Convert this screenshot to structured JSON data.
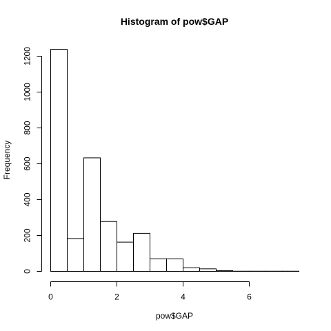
{
  "chart_data": {
    "type": "bar",
    "title": "Histogram of pow$GAP",
    "xlabel": "pow$GAP",
    "ylabel": "Frequency",
    "bin_width": 0.5,
    "bins": [
      {
        "start": 0.0,
        "end": 0.5,
        "count": 1238
      },
      {
        "start": 0.5,
        "end": 1.0,
        "count": 183
      },
      {
        "start": 1.0,
        "end": 1.5,
        "count": 633
      },
      {
        "start": 1.5,
        "end": 2.0,
        "count": 278
      },
      {
        "start": 2.0,
        "end": 2.5,
        "count": 163
      },
      {
        "start": 2.5,
        "end": 3.0,
        "count": 212
      },
      {
        "start": 3.0,
        "end": 3.5,
        "count": 70
      },
      {
        "start": 3.5,
        "end": 4.0,
        "count": 70
      },
      {
        "start": 4.0,
        "end": 4.5,
        "count": 20
      },
      {
        "start": 4.5,
        "end": 5.0,
        "count": 14
      },
      {
        "start": 5.0,
        "end": 5.5,
        "count": 4
      },
      {
        "start": 5.5,
        "end": 6.0,
        "count": 1
      },
      {
        "start": 6.0,
        "end": 6.5,
        "count": 1
      },
      {
        "start": 6.5,
        "end": 7.0,
        "count": 1
      },
      {
        "start": 7.0,
        "end": 7.5,
        "count": 1
      }
    ],
    "xlim": [
      0,
      7.5
    ],
    "ylim": [
      0,
      1238
    ],
    "xticks": [
      0,
      2,
      4,
      6
    ],
    "yticks": [
      0,
      200,
      400,
      600,
      800,
      1000,
      1200
    ],
    "grid": false,
    "bar_fill": "#ffffff",
    "bar_stroke": "#000000"
  }
}
